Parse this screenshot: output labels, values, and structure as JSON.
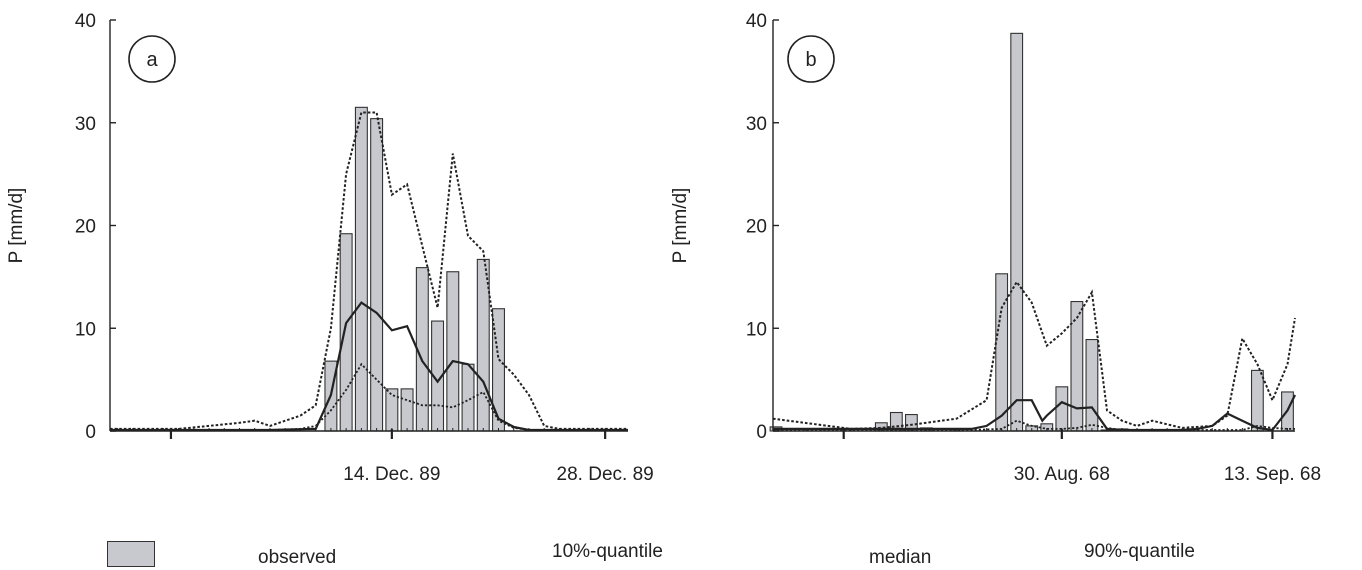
{
  "chart_data": [
    {
      "type": "bar",
      "panel_label": "a",
      "ylabel": "P [mm/d]",
      "xlabel": "",
      "ylim": [
        0,
        40
      ],
      "yticks": [
        0,
        10,
        20,
        30,
        40
      ],
      "xlim": [
        -18.5,
        15.5
      ],
      "xtick_major_days": [
        -14.5,
        0,
        14
      ],
      "xtick_labels": [
        {
          "day": 0,
          "label": "14. Dec. 89"
        },
        {
          "day": 14,
          "label": "28. Dec. 89"
        }
      ],
      "day_zero_date": "14. Dec. 89",
      "observed": {
        "days": [
          -4,
          -3,
          -2,
          -1,
          0,
          1,
          2,
          3,
          4,
          5,
          6,
          7,
          8,
          9
        ],
        "values": [
          6.8,
          19.2,
          31.5,
          30.4,
          4.1,
          4.1,
          15.9,
          10.7,
          15.5,
          6.5,
          16.7,
          11.9,
          0,
          0
        ]
      },
      "quantile10": {
        "days": [
          -18.5,
          -12,
          -10,
          -8,
          -6,
          -5,
          -4,
          -3,
          -2,
          -1,
          0,
          1,
          2,
          3,
          4,
          5,
          6,
          7,
          8,
          9,
          10,
          15.5
        ],
        "values": [
          0.1,
          0.1,
          0.1,
          0.1,
          0.2,
          0.5,
          2.0,
          4.0,
          6.5,
          5.0,
          3.5,
          3.0,
          2.5,
          2.5,
          2.3,
          3.0,
          3.8,
          1.0,
          0.3,
          0.1,
          0.1,
          0.1
        ]
      },
      "median": {
        "days": [
          -18.5,
          -8,
          -5,
          -4,
          -3,
          -2,
          -1,
          0,
          1,
          2,
          3,
          4,
          5,
          6,
          7,
          8,
          9,
          15.5
        ],
        "values": [
          0.1,
          0.1,
          0.2,
          3.5,
          10.5,
          12.5,
          11.5,
          9.8,
          10.2,
          6.8,
          4.8,
          6.8,
          6.5,
          4.8,
          1.2,
          0.4,
          0.1,
          0.1
        ]
      },
      "quantile90": {
        "days": [
          -18.5,
          -14,
          -12,
          -10,
          -9,
          -8,
          -6,
          -5,
          -4,
          -3,
          -2,
          -1,
          0,
          1,
          2,
          3,
          4,
          5,
          6,
          7,
          8,
          9,
          10,
          11,
          15.5
        ],
        "values": [
          0.2,
          0.2,
          0.5,
          0.8,
          1.0,
          0.5,
          1.5,
          2.5,
          10.0,
          25.0,
          31.0,
          31.0,
          23.0,
          24.0,
          18.0,
          12.0,
          27.0,
          19.0,
          17.5,
          7.0,
          5.5,
          3.5,
          0.5,
          0.2,
          0.2
        ]
      }
    },
    {
      "type": "bar",
      "panel_label": "b",
      "ylabel": "P [mm/d]",
      "xlabel": "",
      "ylim": [
        0,
        40
      ],
      "yticks": [
        0,
        10,
        20,
        30,
        40
      ],
      "xlim": [
        -19.2,
        15.5
      ],
      "xtick_major_days": [
        -14.5,
        0,
        14
      ],
      "xtick_labels": [
        {
          "day": 0,
          "label": "30. Aug. 68"
        },
        {
          "day": 14,
          "label": "13. Sep. 68"
        }
      ],
      "day_zero_date": "30. Aug. 68",
      "observed": {
        "days": [
          -19,
          -12,
          -11,
          -10,
          -9,
          -7,
          -4,
          -3,
          -2,
          -1,
          0,
          1,
          2,
          3,
          4,
          5,
          10,
          11,
          12,
          13,
          14,
          15
        ],
        "values": [
          0.4,
          0.8,
          1.8,
          1.6,
          0.3,
          0.2,
          15.3,
          38.7,
          0.5,
          0.7,
          4.3,
          12.6,
          8.9,
          0.1,
          0.2,
          0.1,
          0,
          0,
          0,
          5.9,
          0,
          3.8
        ]
      },
      "quantile10": {
        "days": [
          -19.2,
          -12,
          -10,
          -8,
          -6,
          -4,
          -3,
          -2,
          -1,
          0,
          1,
          2,
          3,
          4,
          6,
          8,
          10,
          12,
          13,
          14,
          15,
          15.5
        ],
        "values": [
          0.1,
          0.1,
          0.1,
          0.1,
          0.1,
          0.2,
          1.0,
          0.5,
          0.2,
          0.2,
          0.3,
          0.6,
          0.3,
          0.1,
          0.1,
          0.1,
          0.1,
          0.1,
          0.5,
          0.3,
          0.2,
          0.2
        ]
      },
      "median": {
        "days": [
          -19.2,
          -6,
          -5,
          -4,
          -3,
          -2,
          -1.3,
          -1,
          0,
          1,
          2,
          3,
          4,
          8,
          9,
          10,
          11,
          12,
          13,
          14,
          15,
          15.5
        ],
        "values": [
          0.2,
          0.2,
          0.5,
          1.5,
          3.0,
          3.0,
          1.0,
          1.5,
          2.8,
          2.2,
          2.3,
          0.2,
          0.1,
          0.1,
          0.2,
          0.5,
          1.7,
          1.0,
          0.3,
          0.1,
          2.0,
          3.5
        ]
      },
      "quantile90": {
        "days": [
          -19.2,
          -14,
          -12,
          -10,
          -7,
          -5,
          -4,
          -3,
          -2,
          -1,
          0,
          1,
          2,
          3,
          4,
          5,
          6,
          8,
          10,
          11,
          12,
          13,
          14,
          15,
          15.5
        ],
        "values": [
          1.2,
          0.2,
          0.3,
          0.6,
          1.2,
          3.0,
          12.0,
          14.5,
          12.5,
          8.3,
          9.5,
          11.0,
          13.5,
          2.0,
          1.0,
          0.5,
          1.0,
          0.3,
          0.5,
          1.5,
          9.0,
          6.5,
          3.0,
          6.5,
          11.0
        ]
      }
    }
  ],
  "legend": {
    "observed": "observed",
    "q10": "10%-quantile",
    "median": "median",
    "q90": "90%-quantile"
  },
  "colors": {
    "bar_fill": "#c7c9ce",
    "bar_stroke": "#333333",
    "line": "#222222",
    "axis": "#222222"
  }
}
